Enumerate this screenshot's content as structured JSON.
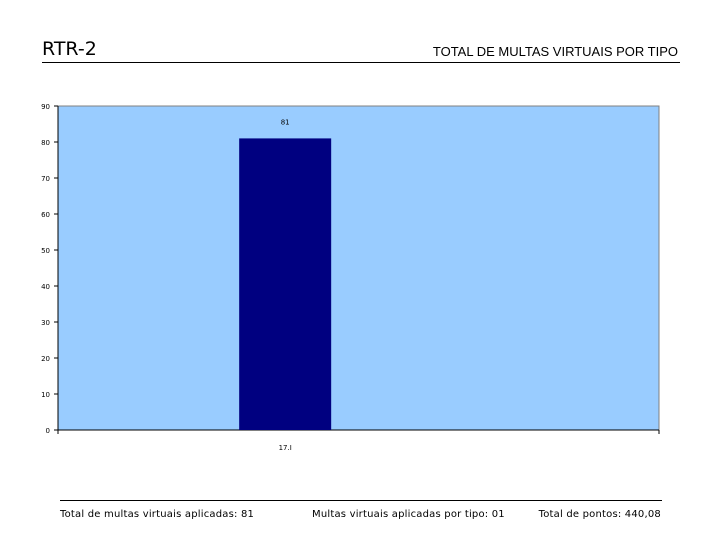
{
  "header": {
    "code": "RTR-2",
    "title": "TOTAL DE MULTAS VIRTUAIS POR TIPO"
  },
  "chart_data": {
    "type": "bar",
    "categories": [
      "17.I"
    ],
    "values": [
      81
    ],
    "data_labels": [
      "81"
    ],
    "ylim": [
      0,
      90
    ],
    "yticks": [
      0,
      10,
      20,
      30,
      40,
      50,
      60,
      70,
      80,
      90
    ],
    "grid": false,
    "colors": {
      "plot_bg": "#99CCFF",
      "bar": "#000080"
    }
  },
  "footer": {
    "total_label": "Total de multas virtuais aplicadas: 81",
    "per_type_label": "Multas virtuais aplicadas por tipo: 01",
    "points_label": "Total de pontos: 440,08"
  }
}
